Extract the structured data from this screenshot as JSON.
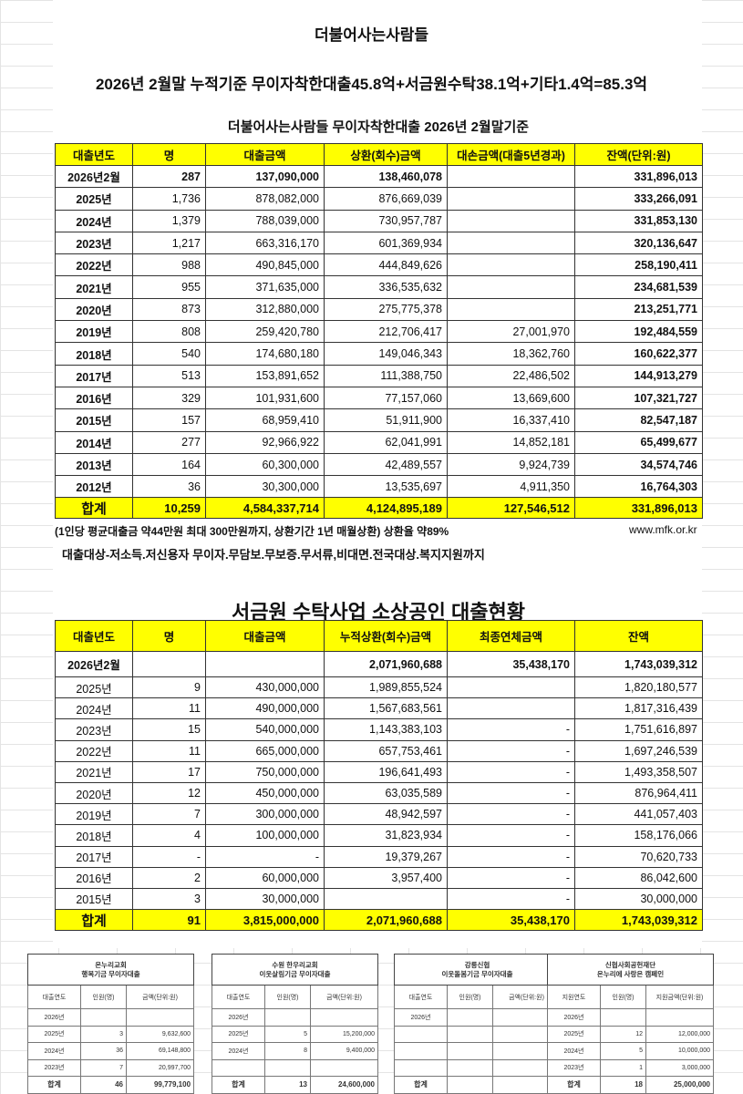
{
  "title": "더불어사는사람들",
  "summary": "2026년  2월말 누적기준 무이자착한대출45.8억+서금원수탁38.1억+기타1.4억=85.3억",
  "table1": {
    "title": "더불어사는사람들 무이자착한대출   2026년 2월말기준",
    "headers": [
      "대출년도",
      "명",
      "대출금액",
      "상환(회수)금액",
      "대손금액(대출5년경과)",
      "잔액(단위:원)"
    ],
    "rows": [
      [
        "2026년2월",
        "287",
        "137,090,000",
        "138,460,078",
        "",
        "331,896,013"
      ],
      [
        "2025년",
        "1,736",
        "878,082,000",
        "876,669,039",
        "",
        "333,266,091"
      ],
      [
        "2024년",
        "1,379",
        "788,039,000",
        "730,957,787",
        "",
        "331,853,130"
      ],
      [
        "2023년",
        "1,217",
        "663,316,170",
        "601,369,934",
        "",
        "320,136,647"
      ],
      [
        "2022년",
        "988",
        "490,845,000",
        "444,849,626",
        "",
        "258,190,411"
      ],
      [
        "2021년",
        "955",
        "371,635,000",
        "336,535,632",
        "",
        "234,681,539"
      ],
      [
        "2020년",
        "873",
        "312,880,000",
        "275,775,378",
        "",
        "213,251,771"
      ],
      [
        "2019년",
        "808",
        "259,420,780",
        "212,706,417",
        "27,001,970",
        "192,484,559"
      ],
      [
        "2018년",
        "540",
        "174,680,180",
        "149,046,343",
        "18,362,760",
        "160,622,377"
      ],
      [
        "2017년",
        "513",
        "153,891,652",
        "111,388,750",
        "22,486,502",
        "144,913,279"
      ],
      [
        "2016년",
        "329",
        "101,931,600",
        "77,157,060",
        "13,669,600",
        "107,321,727"
      ],
      [
        "2015년",
        "157",
        "68,959,410",
        "51,911,900",
        "16,337,410",
        "82,547,187"
      ],
      [
        "2014년",
        "277",
        "92,966,922",
        "62,041,991",
        "14,852,181",
        "65,499,677"
      ],
      [
        "2013년",
        "164",
        "60,300,000",
        "42,489,557",
        "9,924,739",
        "34,574,746"
      ],
      [
        "2012년",
        "36",
        "30,300,000",
        "13,535,697",
        "4,911,350",
        "16,764,303"
      ]
    ],
    "total": [
      "합계",
      "10,259",
      "4,584,337,714",
      "4,124,895,189",
      "127,546,512",
      "331,896,013"
    ],
    "note": "(1인당 평균대출금 약44만원  최대 300만원까지, 상환기간 1년   매월상환)  상환율 약89%",
    "website": "www.mfk.or.kr",
    "target": "대출대상-저소득.저신용자 무이자.무담보.무보증.무서류,비대면.전국대상.복지지원까지"
  },
  "table2": {
    "title": "서금원 수탁사업 소상공인 대출현황",
    "headers": [
      "대출년도",
      "명",
      "대출금액",
      "누적상환(회수)금액",
      "최종연체금액",
      "잔액"
    ],
    "rows": [
      [
        "2026년2월",
        "",
        "",
        "2,071,960,688",
        "35,438,170",
        "1,743,039,312"
      ],
      [
        "2025년",
        "9",
        "430,000,000",
        "1,989,855,524",
        "",
        "1,820,180,577"
      ],
      [
        "2024년",
        "11",
        "490,000,000",
        "1,567,683,561",
        "",
        "1,817,316,439"
      ],
      [
        "2023년",
        "15",
        "540,000,000",
        "1,143,383,103",
        "-",
        "1,751,616,897"
      ],
      [
        "2022년",
        "11",
        "665,000,000",
        "657,753,461",
        "-",
        "1,697,246,539"
      ],
      [
        "2021년",
        "17",
        "750,000,000",
        "196,641,493",
        "-",
        "1,493,358,507"
      ],
      [
        "2020년",
        "12",
        "450,000,000",
        "63,035,589",
        "-",
        "876,964,411"
      ],
      [
        "2019년",
        "7",
        "300,000,000",
        "48,942,597",
        "-",
        "441,057,403"
      ],
      [
        "2018년",
        "4",
        "100,000,000",
        "31,823,934",
        "-",
        "158,176,066"
      ],
      [
        "2017년",
        "-",
        "-",
        "19,379,267",
        "-",
        "70,620,733"
      ],
      [
        "2016년",
        "2",
        "60,000,000",
        "3,957,400",
        "-",
        "86,042,600"
      ],
      [
        "2015년",
        "3",
        "30,000,000",
        "",
        "-",
        "30,000,000"
      ]
    ],
    "total": [
      "합계",
      "91",
      "3,815,000,000",
      "2,071,960,688",
      "35,438,170",
      "1,743,039,312"
    ]
  },
  "mini_tables": [
    {
      "title": [
        "온누리교회",
        "행복기금 무이자대출"
      ],
      "headers": [
        "대출연도",
        "인원(명)",
        "금액(단위:원)"
      ],
      "rows": [
        [
          "2026년",
          "",
          ""
        ],
        [
          "2025년",
          "3",
          "9,632,600"
        ],
        [
          "2024년",
          "36",
          "69,148,800"
        ],
        [
          "2023년",
          "7",
          "20,997,700"
        ]
      ],
      "total": [
        "합계",
        "46",
        "99,779,100"
      ]
    },
    {
      "title": [
        "수원 한우리교회",
        "이웃살림기금 무이자대출"
      ],
      "headers": [
        "대출연도",
        "인원(명)",
        "금액(단위:원)"
      ],
      "rows": [
        [
          "2026년",
          "",
          ""
        ],
        [
          "2025년",
          "5",
          "15,200,000"
        ],
        [
          "2024년",
          "8",
          "9,400,000"
        ],
        [
          "",
          "",
          ""
        ]
      ],
      "total": [
        "합계",
        "13",
        "24,600,000"
      ]
    },
    {
      "title": [
        "강릉신협",
        "이웃돌봄기금 무이자대출"
      ],
      "headers": [
        "대출연도",
        "인원(명)",
        "금액(단위:원)"
      ],
      "rows": [
        [
          "2026년",
          "",
          ""
        ],
        [
          "",
          "",
          ""
        ],
        [
          "",
          "",
          ""
        ],
        [
          "",
          "",
          ""
        ]
      ],
      "total": [
        "합계",
        "",
        "-"
      ]
    },
    {
      "title": [
        "신협사회공헌재단",
        "온누리에 사랑은 캠페인"
      ],
      "headers": [
        "지원연도",
        "인원(명)",
        "지원금액(단위:원)"
      ],
      "rows": [
        [
          "2026년",
          "",
          ""
        ],
        [
          "2025년",
          "12",
          "12,000,000"
        ],
        [
          "2024년",
          "5",
          "10,000,000"
        ],
        [
          "2023년",
          "1",
          "3,000,000"
        ]
      ],
      "total": [
        "합계",
        "18",
        "25,000,000"
      ]
    }
  ],
  "colors": {
    "header_fill": "#ffff00",
    "border": "#333333"
  }
}
